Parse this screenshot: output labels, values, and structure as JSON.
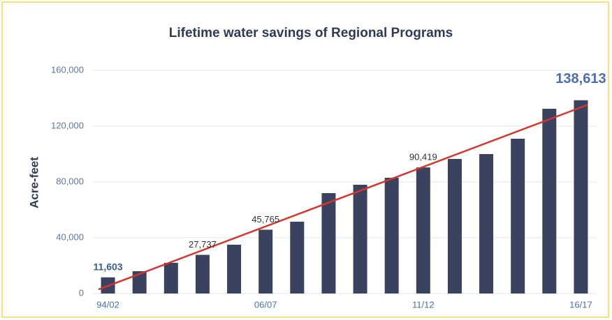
{
  "chart_data": {
    "type": "bar",
    "title": "Lifetime water savings of Regional Programs",
    "y_label": "Acre-feet",
    "categories": [
      "94/02",
      null,
      null,
      null,
      null,
      "06/07",
      null,
      null,
      null,
      null,
      "11/12",
      null,
      null,
      null,
      null,
      "16/17"
    ],
    "values": [
      11603,
      16000,
      22000,
      27737,
      35000,
      45765,
      51500,
      72000,
      78000,
      83000,
      90419,
      96500,
      100000,
      111000,
      132500,
      138613
    ],
    "value_labels": [
      "11,603",
      null,
      null,
      "27,737",
      null,
      "45,765",
      null,
      null,
      null,
      null,
      "90,419",
      null,
      null,
      null,
      null,
      "138,613"
    ],
    "color": "#39435f",
    "trendline": {
      "color": "#d9342b"
    },
    "ylim": [
      0,
      160000
    ],
    "yticks": [
      0,
      {
        "value": 40000,
        "label": "40,000"
      },
      {
        "value": 80000,
        "label": "80,000"
      },
      {
        "value": 120000,
        "label": "120,000"
      },
      {
        "value": 160000,
        "label": "160,000"
      }
    ],
    "grid": true
  }
}
